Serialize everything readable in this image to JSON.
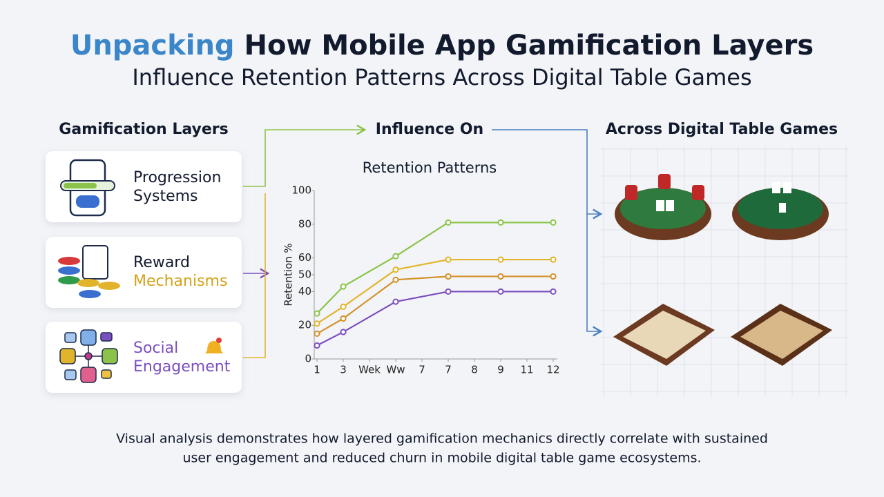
{
  "header": {
    "title_highlight": "Unpacking",
    "title_rest": "How Mobile App Gamification Layers",
    "subtitle": "Influence Retention Patterns Across Digital Table Games"
  },
  "columns": {
    "left": "Gamification Layers",
    "middle": "Influence On",
    "right": "Across Digital Table Games"
  },
  "layers": [
    {
      "lines": [
        "Progression",
        "Systems"
      ]
    },
    {
      "lines": [
        "Reward",
        "Mechanisms"
      ]
    },
    {
      "lines": [
        "Social",
        "Engagement"
      ]
    }
  ],
  "chart_data": {
    "type": "line",
    "title": "Retention Patterns",
    "y_label": "Retention %",
    "x": [
      1,
      2,
      4,
      6,
      8,
      10
    ],
    "xlim": [
      1,
      10
    ],
    "xticks": [
      1,
      {
        "value": 2,
        "label": "3"
      },
      {
        "value": 3,
        "label": "Wek"
      },
      {
        "value": 4,
        "label": "Ww"
      },
      {
        "value": 5,
        "label": "7"
      },
      {
        "value": 6,
        "label": "7"
      },
      {
        "value": 7,
        "label": "8"
      },
      {
        "value": 8,
        "label": "9"
      },
      {
        "value": 9,
        "label": "11"
      },
      {
        "value": 10,
        "label": "12"
      }
    ],
    "ylim": [
      0,
      100
    ],
    "yticks": [
      0,
      20,
      40,
      50,
      60,
      80,
      100
    ],
    "series": [
      {
        "color": "#8bc34a",
        "values": [
          27,
          43,
          61,
          81,
          81,
          81
        ]
      },
      {
        "color": "#e2b42c",
        "values": [
          21,
          31,
          53,
          59,
          59,
          59
        ]
      },
      {
        "color": "#d4912b",
        "values": [
          15,
          24,
          47,
          49,
          49,
          49
        ]
      },
      {
        "color": "#7b4fc0",
        "values": [
          8,
          16,
          34,
          40,
          40,
          40
        ]
      }
    ]
  },
  "footer": [
    "Visual analysis demonstrates how layered gamification mechanics directly correlate with sustained",
    "user engagement and reduced churn in mobile digital table game ecosystems."
  ]
}
